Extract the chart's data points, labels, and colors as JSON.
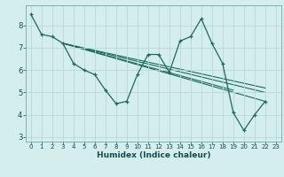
{
  "xlabel": "Humidex (Indice chaleur)",
  "bg_color": "#d4eeee",
  "grid_color": "#b8d8d8",
  "line_color": "#1a6b5a",
  "main_line": {
    "x": [
      0,
      1,
      2,
      3,
      4,
      5,
      6,
      7,
      8,
      9,
      10,
      11,
      12,
      13,
      14,
      15,
      16,
      17,
      18,
      19,
      20,
      21,
      22
    ],
    "y": [
      8.5,
      7.6,
      7.5,
      7.2,
      6.3,
      6.0,
      5.8,
      5.1,
      4.5,
      4.6,
      5.8,
      6.7,
      6.7,
      5.9,
      7.3,
      7.5,
      8.3,
      7.2,
      6.3,
      4.1,
      3.3,
      4.0,
      4.6
    ]
  },
  "straight_lines": [
    {
      "x": [
        3,
        22
      ],
      "y": [
        7.2,
        4.6
      ]
    },
    {
      "x": [
        3,
        22
      ],
      "y": [
        7.2,
        5.0
      ]
    },
    {
      "x": [
        3,
        22
      ],
      "y": [
        7.2,
        5.2
      ]
    },
    {
      "x": [
        3,
        19
      ],
      "y": [
        7.2,
        5.1
      ]
    }
  ],
  "xlim": [
    -0.5,
    23.5
  ],
  "ylim": [
    2.8,
    8.9
  ],
  "xticks": [
    0,
    1,
    2,
    3,
    4,
    5,
    6,
    7,
    8,
    9,
    10,
    11,
    12,
    13,
    14,
    15,
    16,
    17,
    18,
    19,
    20,
    21,
    22,
    23
  ],
  "yticks": [
    3,
    4,
    5,
    6,
    7,
    8
  ],
  "xtick_labels": [
    "0",
    "1",
    "2",
    "3",
    "4",
    "5",
    "6",
    "7",
    "8",
    "9",
    "10",
    "11",
    "12",
    "13",
    "14",
    "15",
    "16",
    "17",
    "18",
    "19",
    "20",
    "21",
    "22",
    "23"
  ]
}
